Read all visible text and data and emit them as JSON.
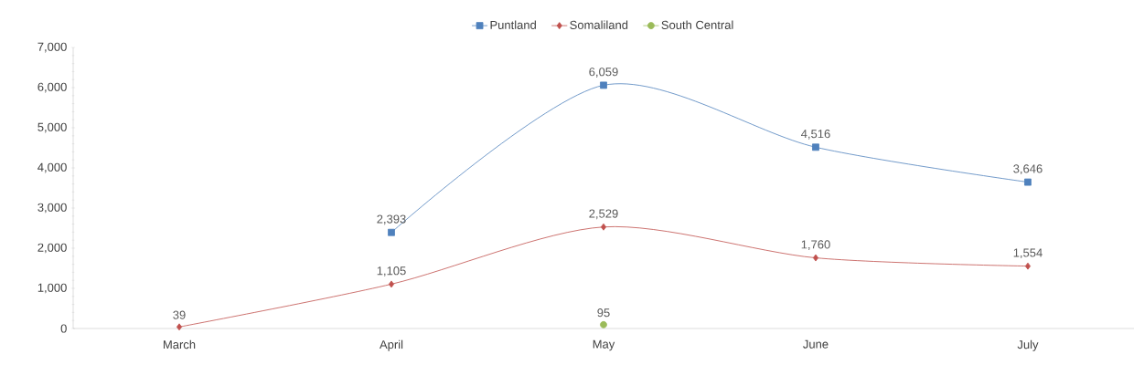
{
  "chart_data": {
    "type": "line",
    "categories": [
      "March",
      "April",
      "May",
      "June",
      "July"
    ],
    "series": [
      {
        "name": "Puntland",
        "color": "#4f81bd",
        "marker": "square",
        "values": [
          null,
          2393,
          6059,
          4516,
          3646
        ],
        "value_labels": [
          null,
          "2,393",
          "6,059",
          "4,516",
          "3,646"
        ]
      },
      {
        "name": "Somaliland",
        "color": "#c0504d",
        "marker": "diamond",
        "values": [
          39,
          1105,
          2529,
          1760,
          1554
        ],
        "value_labels": [
          "39",
          "1,105",
          "2,529",
          "1,760",
          "1,554"
        ]
      },
      {
        "name": "South Central",
        "color": "#9bbb59",
        "marker": "circle",
        "values": [
          null,
          null,
          95,
          null,
          null
        ],
        "value_labels": [
          null,
          null,
          "95",
          null,
          null
        ]
      }
    ],
    "ylim": [
      0,
      7000
    ],
    "yticks": [
      0,
      {
        "value": 1000,
        "label": "1,000"
      },
      {
        "value": 2000,
        "label": "2,000"
      },
      {
        "value": 3000,
        "label": "3,000"
      },
      {
        "value": 4000,
        "label": "4,000"
      },
      {
        "value": 5000,
        "label": "5,000"
      },
      {
        "value": 6000,
        "label": "6,000"
      },
      {
        "value": 7000,
        "label": "7,000"
      }
    ],
    "legend": "top"
  }
}
